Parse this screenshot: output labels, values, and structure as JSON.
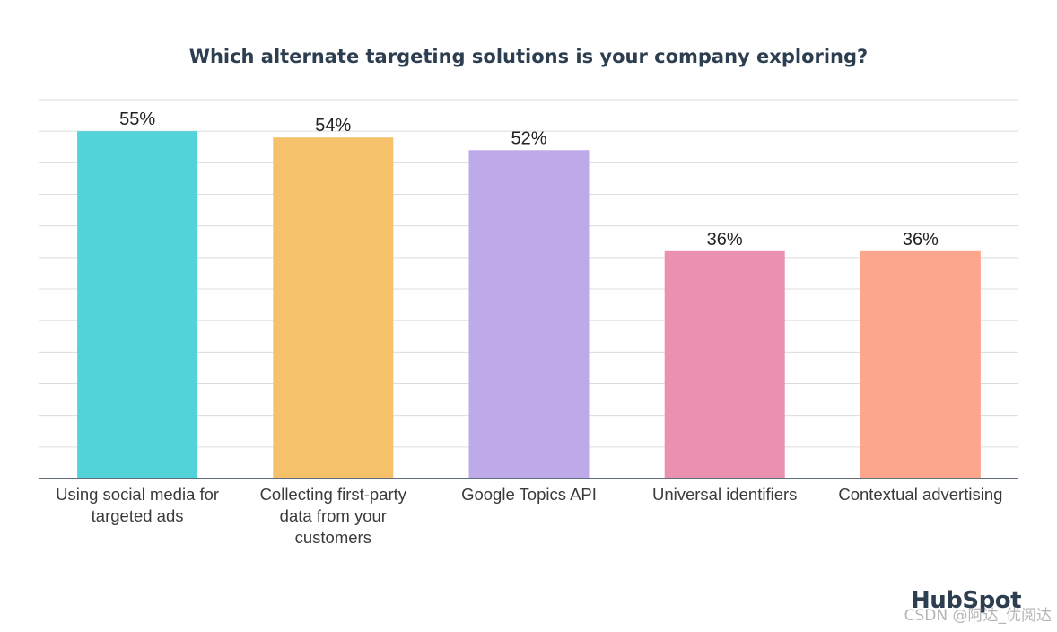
{
  "chart_data": {
    "type": "bar",
    "title": "Which alternate targeting solutions is your company exploring?",
    "categories": [
      "Using social media for targeted ads",
      "Collecting first-party data from your customers",
      "Google Topics API",
      "Universal identifiers",
      "Contextual advertising"
    ],
    "category_lines": [
      [
        "Using social media for",
        "targeted ads"
      ],
      [
        "Collecting first-party",
        "data from your",
        "customers"
      ],
      [
        "Google Topics API"
      ],
      [
        "Universal identifiers"
      ],
      [
        "Contextual advertising"
      ]
    ],
    "values": [
      55,
      54,
      52,
      36,
      36
    ],
    "value_labels": [
      "55%",
      "54%",
      "52%",
      "36%",
      "36%"
    ],
    "colors": [
      "#51d3d9",
      "#f5c26b",
      "#bea9e9",
      "#ea90b1",
      "#fea58e"
    ],
    "ylim": [
      0,
      60
    ],
    "grid": true,
    "xlabel": "",
    "ylabel": ""
  },
  "branding": {
    "logo_text": "HubSpot",
    "watermark": "CSDN @阿达_优阅达"
  }
}
